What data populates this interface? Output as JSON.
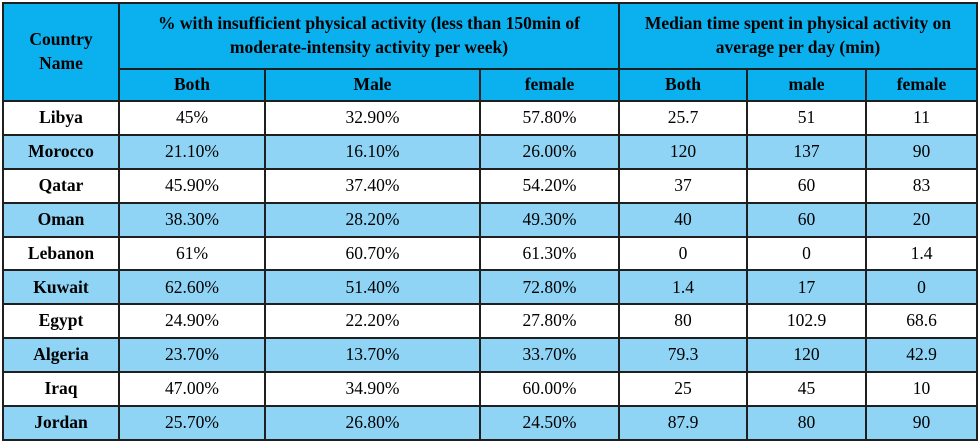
{
  "table": {
    "header": {
      "country": "Country Name",
      "group1": "% with insufficient physical activity (less than 150min of moderate-intensity activity per week)",
      "group2": "Median time spent in physical activity on average per day (min)",
      "sub": [
        "Both",
        "Male",
        "female",
        "Both",
        "male",
        "female"
      ]
    },
    "rows": [
      {
        "country": "Libya",
        "cells": [
          "45%",
          "32.90%",
          "57.80%",
          "25.7",
          "51",
          "11"
        ]
      },
      {
        "country": "Morocco",
        "cells": [
          "21.10%",
          "16.10%",
          "26.00%",
          "120",
          "137",
          "90"
        ]
      },
      {
        "country": "Qatar",
        "cells": [
          "45.90%",
          "37.40%",
          "54.20%",
          "37",
          "60",
          "83"
        ]
      },
      {
        "country": "Oman",
        "cells": [
          "38.30%",
          "28.20%",
          "49.30%",
          "40",
          "60",
          "20"
        ]
      },
      {
        "country": "Lebanon",
        "cells": [
          "61%",
          "60.70%",
          "61.30%",
          "0",
          "0",
          "1.4"
        ]
      },
      {
        "country": "Kuwait",
        "cells": [
          "62.60%",
          "51.40%",
          "72.80%",
          "1.4",
          "17",
          "0"
        ]
      },
      {
        "country": "Egypt",
        "cells": [
          "24.90%",
          "22.20%",
          "27.80%",
          "80",
          "102.9",
          "68.6"
        ]
      },
      {
        "country": "Algeria",
        "cells": [
          "23.70%",
          "13.70%",
          "33.70%",
          "79.3",
          "120",
          "42.9"
        ]
      },
      {
        "country": "Iraq",
        "cells": [
          "47.00%",
          "34.90%",
          "60.00%",
          "25",
          "45",
          "10"
        ]
      },
      {
        "country": "Jordan",
        "cells": [
          "25.70%",
          "26.80%",
          "24.50%",
          "87.9",
          "80",
          "90"
        ]
      }
    ]
  },
  "colors": {
    "header_bg": "#0bb0ee",
    "stripe_bg": "#8fd3f5",
    "border": "#1f1f1f"
  }
}
